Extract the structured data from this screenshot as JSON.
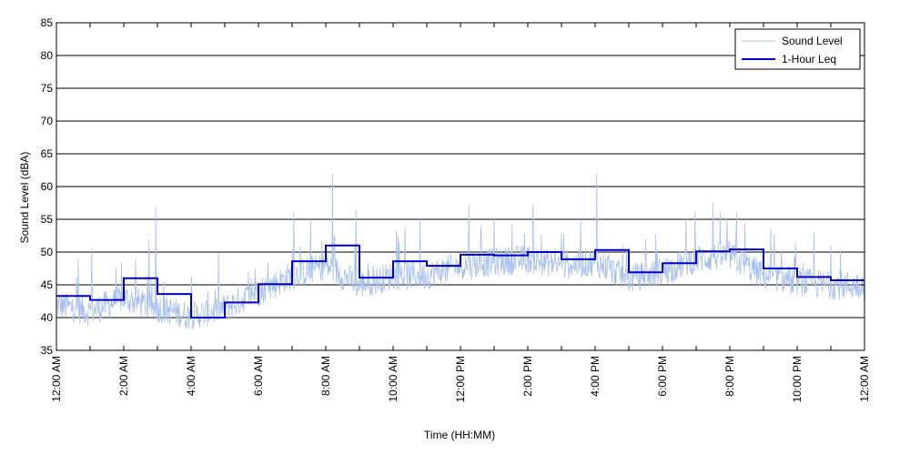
{
  "chart_data": {
    "type": "line",
    "title": "",
    "xlabel": "Time (HH:MM)",
    "ylabel": "Sound Level (dBA)",
    "ylim": [
      35,
      85
    ],
    "yticks": [
      35,
      40,
      45,
      50,
      55,
      60,
      65,
      70,
      75,
      80,
      85
    ],
    "xlim": [
      0,
      24
    ],
    "xticks": [
      0,
      2,
      4,
      6,
      8,
      10,
      12,
      14,
      16,
      18,
      20,
      22,
      24
    ],
    "xtick_labels": [
      "12:00 AM",
      "2:00 AM",
      "4:00 AM",
      "6:00 AM",
      "8:00 AM",
      "10:00 AM",
      "12:00 PM",
      "2:00 PM",
      "4:00 PM",
      "6:00 PM",
      "8:00 PM",
      "10:00 PM",
      "12:00 AM"
    ],
    "grid": "horizontal",
    "legend_position": "top-right",
    "series": [
      {
        "name": "Sound Level",
        "color": "#a8c0f0",
        "style": "thin-noisy",
        "hourly_baseline": [
          41.5,
          40.5,
          42.5,
          41.0,
          39.8,
          41.0,
          43.5,
          46.0,
          47.5,
          44.5,
          46.0,
          46.0,
          47.5,
          48.0,
          48.5,
          47.5,
          48.0,
          45.5,
          46.5,
          48.5,
          49.0,
          46.0,
          45.0,
          44.5
        ],
        "peaks": [
          {
            "x": 0.65,
            "y": 49.0
          },
          {
            "x": 1.05,
            "y": 50.5
          },
          {
            "x": 2.75,
            "y": 52.0
          },
          {
            "x": 2.95,
            "y": 57.0
          },
          {
            "x": 4.5,
            "y": 44.0
          },
          {
            "x": 5.9,
            "y": 47.5
          },
          {
            "x": 7.05,
            "y": 56.0
          },
          {
            "x": 7.55,
            "y": 55.0
          },
          {
            "x": 8.2,
            "y": 62.0
          },
          {
            "x": 8.9,
            "y": 56.5
          },
          {
            "x": 10.8,
            "y": 55.0
          },
          {
            "x": 12.25,
            "y": 57.0
          },
          {
            "x": 13.0,
            "y": 55.0
          },
          {
            "x": 15.0,
            "y": 53.0
          },
          {
            "x": 16.05,
            "y": 62.0
          },
          {
            "x": 17.5,
            "y": 52.0
          },
          {
            "x": 18.7,
            "y": 55.0
          },
          {
            "x": 19.5,
            "y": 57.5
          },
          {
            "x": 20.2,
            "y": 56.0
          },
          {
            "x": 22.5,
            "y": 53.0
          }
        ]
      },
      {
        "name": "1-Hour Leq",
        "color": "#0000cc",
        "style": "step",
        "x": [
          0,
          1,
          2,
          3,
          4,
          5,
          6,
          7,
          8,
          9,
          10,
          11,
          12,
          13,
          14,
          15,
          16,
          17,
          18,
          19,
          20,
          21,
          22,
          23
        ],
        "values": [
          43.3,
          42.7,
          46.0,
          43.6,
          40.0,
          42.3,
          45.1,
          48.6,
          51.0,
          46.1,
          48.6,
          47.9,
          49.6,
          49.5,
          50.0,
          48.9,
          50.3,
          46.9,
          48.3,
          50.1,
          50.4,
          47.5,
          46.2,
          45.7
        ]
      }
    ]
  }
}
